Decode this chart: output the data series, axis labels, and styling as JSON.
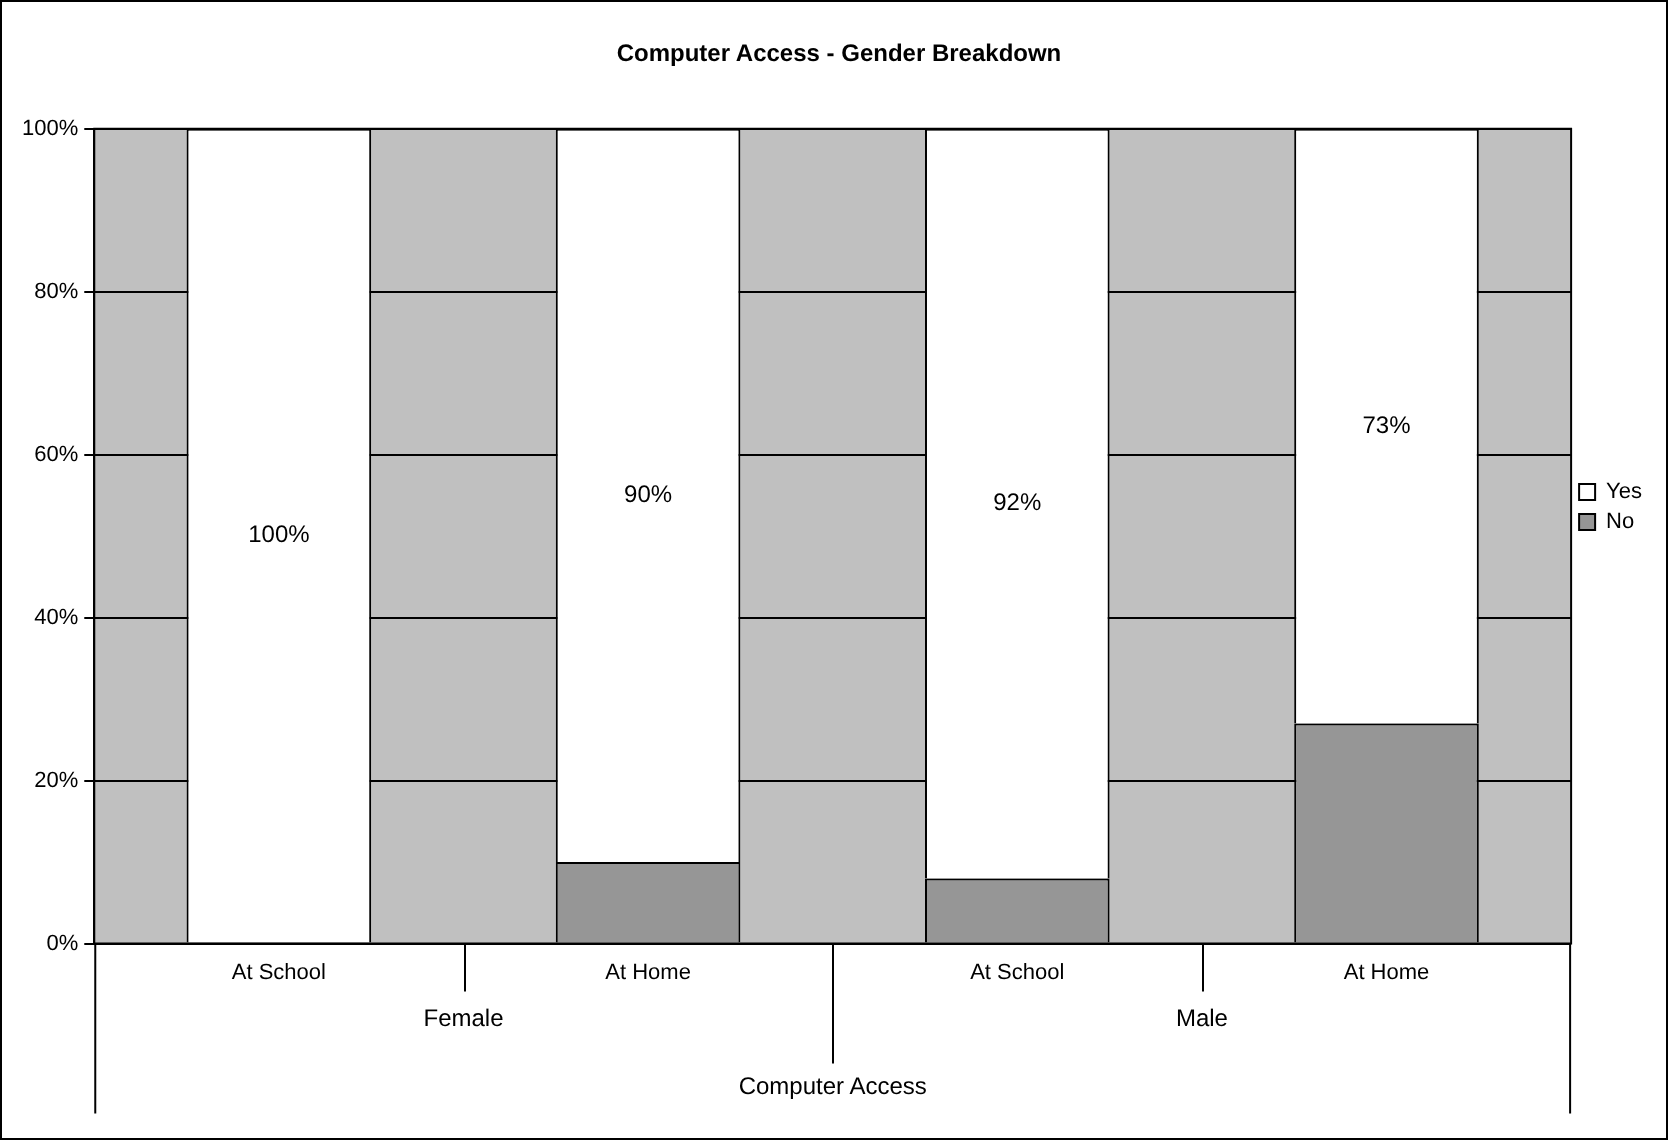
{
  "chart_data": {
    "type": "bar",
    "title": "Computer Access - Gender Breakdown",
    "xlabel": "Computer Access",
    "stacked": true,
    "categories": [
      "At School",
      "At Home",
      "At School",
      "At Home"
    ],
    "series": [
      {
        "name": "No",
        "color": "#969696",
        "values": [
          0,
          10,
          8,
          27
        ]
      },
      {
        "name": "Yes",
        "color": "#ffffff",
        "values": [
          100,
          90,
          92,
          73
        ],
        "value_labels": [
          "100%",
          "90%",
          "92%",
          "73%"
        ]
      }
    ],
    "annotations": [
      "Female",
      "Male"
    ],
    "ylim": [
      0,
      100
    ],
    "yticks": [
      {
        "value": 0,
        "label": "0%"
      },
      {
        "value": 20,
        "label": "20%"
      },
      {
        "value": 40,
        "label": "40%"
      },
      {
        "value": 60,
        "label": "60%"
      },
      {
        "value": 80,
        "label": "80%"
      },
      {
        "value": 100,
        "label": "100%"
      }
    ],
    "grid": "y",
    "legend": "right"
  }
}
